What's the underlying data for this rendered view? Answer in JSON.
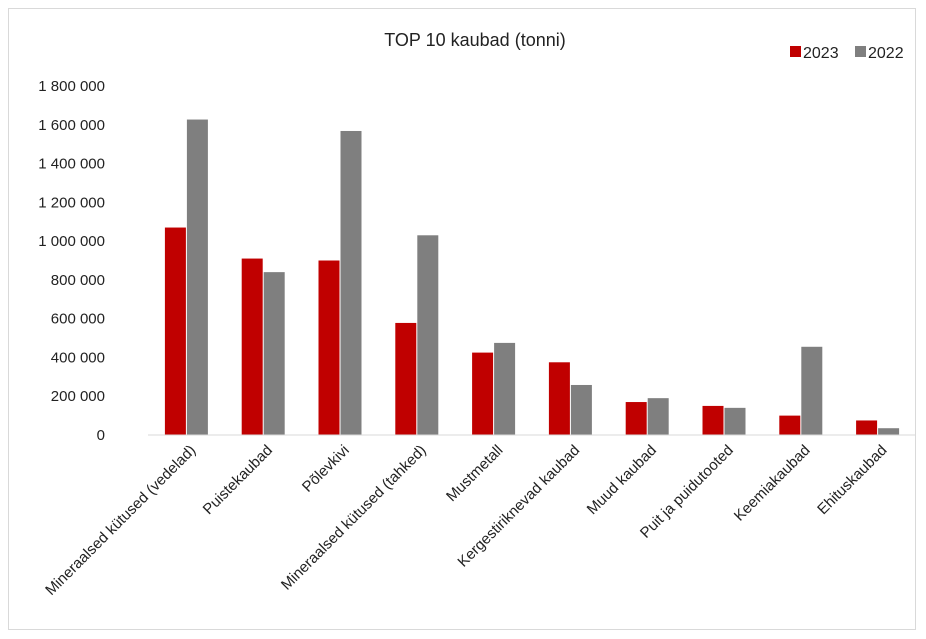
{
  "chart_data": {
    "type": "bar",
    "title": "TOP 10 kaubad (tonni)",
    "xlabel": "",
    "ylabel": "",
    "ylim": [
      0,
      1800000
    ],
    "yticks": [
      0,
      200000,
      400000,
      600000,
      800000,
      1000000,
      1200000,
      1400000,
      1600000,
      1800000
    ],
    "ytick_labels": [
      "0",
      "200 000",
      "400 000",
      "600 000",
      "800 000",
      "1 000 000",
      "1 200 000",
      "1 400 000",
      "1 600 000",
      "1 800 000"
    ],
    "grid": false,
    "legend_position": "top-right",
    "categories": [
      "Mineraalsed kütused (vedelad)",
      "Puistekaubad",
      "Põlevkivi",
      "Mineraalsed kütused (tahked)",
      "Mustmetall",
      "Kergestiriknevad kaubad",
      "Muud kaubad",
      "Puit ja puidutooted",
      "Keemiakaubad",
      "Ehituskaubad"
    ],
    "series": [
      {
        "name": "2023",
        "color": "#c00000",
        "values": [
          1070000,
          910000,
          900000,
          578000,
          425000,
          375000,
          170000,
          150000,
          100000,
          75000
        ]
      },
      {
        "name": "2022",
        "color": "#7f7f7f",
        "values": [
          1627000,
          840000,
          1568000,
          1030000,
          475000,
          258000,
          190000,
          140000,
          455000,
          35000
        ]
      }
    ]
  }
}
